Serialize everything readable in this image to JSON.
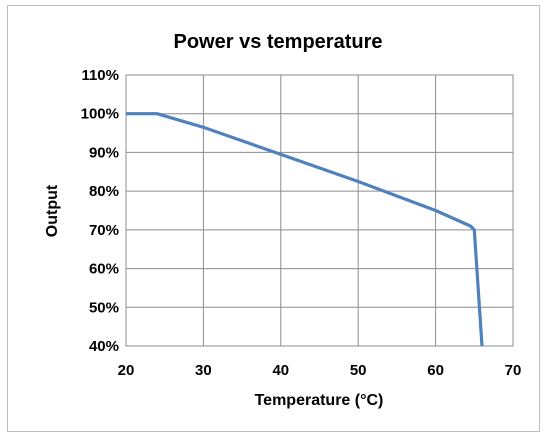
{
  "chart_data": {
    "type": "line",
    "title": "Power vs temperature",
    "xlabel": "Temperature (°C)",
    "ylabel": "Output",
    "xlim": [
      20,
      70
    ],
    "ylim": [
      40,
      110
    ],
    "x_ticks": [
      20,
      30,
      40,
      50,
      60,
      70
    ],
    "x_tick_labels": [
      "20",
      "30",
      "40",
      "50",
      "60",
      "70"
    ],
    "y_ticks": [
      40,
      50,
      60,
      70,
      80,
      90,
      100,
      110
    ],
    "y_tick_labels": [
      "40%",
      "50%",
      "60%",
      "70%",
      "80%",
      "90%",
      "100%",
      "110%"
    ],
    "grid": true,
    "legend": "none",
    "series": [
      {
        "color": "#4f81bd",
        "x": [
          20,
          24,
          30,
          40,
          50,
          60,
          64.5,
          65,
          66
        ],
        "y": [
          100,
          100,
          96.5,
          89.5,
          82.5,
          75,
          71,
          70,
          40
        ]
      }
    ]
  }
}
